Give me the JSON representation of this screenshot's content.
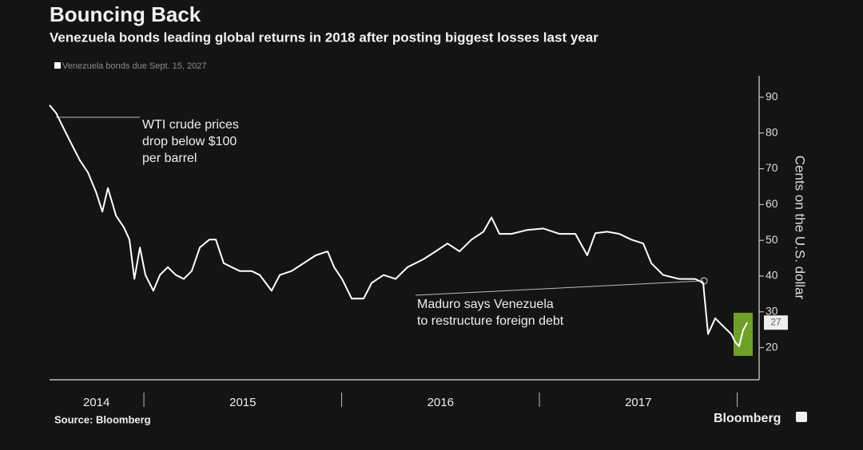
{
  "chart_data": {
    "type": "line",
    "title": "Bouncing Back",
    "subtitle": "Venezuela bonds leading global returns in 2018 after posting biggest losses last year",
    "y_axis_label": "Cents on the U.S. dollar",
    "source": "Source: Bloomberg",
    "brand": "Bloomberg",
    "annotations": [
      {
        "lines": [
          "WTI crude prices",
          "drop below $100",
          "per barrel"
        ]
      },
      {
        "lines": [
          "Maduro says Venezuela",
          "to restructure foreign debt"
        ]
      }
    ],
    "xlim": [
      2014.523,
      2018.111
    ],
    "ylim": [
      11,
      96
    ],
    "yticks": [
      20,
      30,
      40,
      50,
      60,
      70,
      80,
      90
    ],
    "year_boundaries": [
      2015,
      2016,
      2017,
      2018
    ],
    "xticks": [
      {
        "value": 2014.76,
        "label": "2014"
      },
      {
        "value": 2015.5,
        "label": "2015"
      },
      {
        "value": 2016.5,
        "label": "2016"
      },
      {
        "value": 2017.5,
        "label": "2017"
      }
    ],
    "series": [
      {
        "name": "Venezuela bonds due Sept. 15, 2027",
        "color": "#ffffff",
        "x": [
          2014.523,
          2014.556,
          2014.596,
          2014.636,
          2014.677,
          2014.717,
          2014.758,
          2014.79,
          2014.818,
          2014.859,
          2014.899,
          2014.927,
          2014.952,
          2014.98,
          2015.008,
          2015.048,
          2015.081,
          2015.121,
          2015.162,
          2015.202,
          2015.242,
          2015.283,
          2015.331,
          2015.364,
          2015.404,
          2015.444,
          2015.485,
          2015.545,
          2015.586,
          2015.646,
          2015.687,
          2015.747,
          2015.808,
          2015.869,
          2015.929,
          2015.962,
          2016.002,
          2016.051,
          2016.111,
          2016.152,
          2016.212,
          2016.273,
          2016.333,
          2016.414,
          2016.475,
          2016.535,
          2016.596,
          2016.657,
          2016.717,
          2016.758,
          2016.798,
          2016.859,
          2016.939,
          2017.02,
          2017.101,
          2017.182,
          2017.242,
          2017.283,
          2017.343,
          2017.404,
          2017.465,
          2017.525,
          2017.566,
          2017.626,
          2017.707,
          2017.788,
          2017.828,
          2017.853,
          2017.889,
          2017.929,
          2017.97,
          2017.99,
          2018.01,
          2018.03,
          2018.051
        ],
        "values": [
          87.8,
          85.6,
          81.1,
          76.7,
          72.3,
          69,
          63.5,
          58,
          64.6,
          56.9,
          53.6,
          50.2,
          39.2,
          48,
          40.3,
          35.9,
          40.3,
          42.5,
          40.3,
          39.2,
          41.4,
          48,
          50.2,
          50.2,
          43.6,
          42.5,
          41.4,
          41.4,
          40.3,
          35.9,
          40.3,
          41.4,
          43.6,
          45.8,
          46.9,
          42.5,
          39.2,
          33.7,
          33.7,
          38.1,
          40.3,
          39.2,
          42.5,
          44.7,
          46.9,
          49.1,
          46.9,
          50.2,
          52.4,
          56.4,
          51.8,
          51.8,
          52.9,
          53.3,
          51.8,
          51.8,
          45.8,
          52,
          52.4,
          51.8,
          50.2,
          49.1,
          43.6,
          40.3,
          39.2,
          39.2,
          38.1,
          23.8,
          28.2,
          26,
          23.8,
          21.5,
          20.4,
          24.9,
          27
        ]
      }
    ]
  }
}
